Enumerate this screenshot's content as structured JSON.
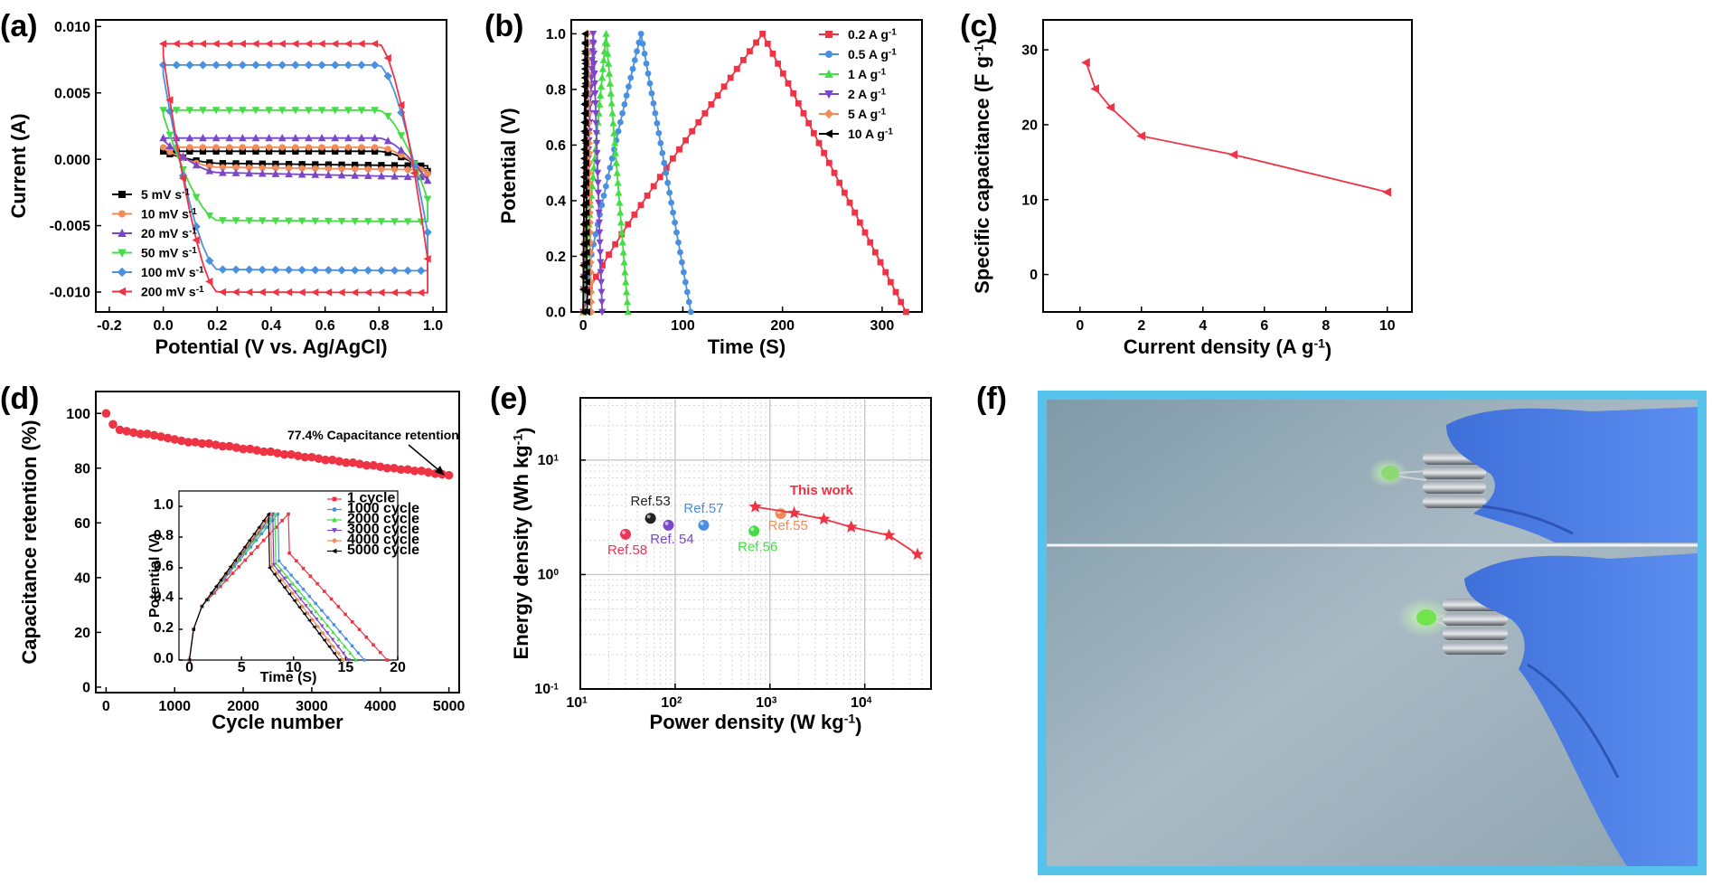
{
  "panels": {
    "a": {
      "label": "(a)"
    },
    "b": {
      "label": "(b)"
    },
    "c": {
      "label": "(c)"
    },
    "d": {
      "label": "(d)"
    },
    "e": {
      "label": "(e)"
    },
    "f": {
      "label": "(f)"
    }
  },
  "chart_data": [
    {
      "id": "a",
      "type": "line",
      "xlabel": "Potential (V vs. Ag/AgCl)",
      "ylabel": "Current (A)",
      "xlim": [
        -0.25,
        1.05
      ],
      "ylim": [
        -0.0115,
        0.0105
      ],
      "xticks": [
        -0.2,
        0.0,
        0.2,
        0.4,
        0.6,
        0.8,
        1.0
      ],
      "xtick_labels": [
        "-0.2",
        "0.0",
        "0.2",
        "0.4",
        "0.6",
        "0.8",
        "1.0"
      ],
      "yticks": [
        -0.01,
        -0.005,
        0.0,
        0.005,
        0.01
      ],
      "ytick_labels": [
        "-0.010",
        "-0.005",
        "0.000",
        "0.005",
        "0.010"
      ],
      "legend_position": "lower-left",
      "series": [
        {
          "name": "5 mV s",
          "sup": "-1",
          "color": "#000000",
          "marker": "square",
          "top": 0.0006,
          "bottom": -0.0003,
          "end_top": -0.0009,
          "end_bottom": -0.0011
        },
        {
          "name": "10 mV s",
          "sup": "-1",
          "color": "#f08c5a",
          "marker": "circle",
          "top": 0.0009,
          "bottom": -0.0006,
          "end_top": -0.0011,
          "end_bottom": -0.0014
        },
        {
          "name": "20 mV s",
          "sup": "-1",
          "color": "#7a47c8",
          "marker": "triangle-up",
          "top": 0.0016,
          "bottom": -0.001,
          "end_top": -0.0016,
          "end_bottom": -0.0024
        },
        {
          "name": "50 mV s",
          "sup": "-1",
          "color": "#44dd44",
          "marker": "triangle-down",
          "top": 0.0037,
          "bottom": -0.0046,
          "end_top": -0.003,
          "end_bottom": -0.005
        },
        {
          "name": "100 mV s",
          "sup": "-1",
          "color": "#4a90e0",
          "marker": "diamond",
          "top": 0.0071,
          "bottom": -0.0083,
          "end_top": -0.0055,
          "end_bottom": -0.0087
        },
        {
          "name": "200 mV s",
          "sup": "-1",
          "color": "#ee3344",
          "marker": "triangle-left",
          "top": 0.0087,
          "bottom": -0.01,
          "end_top": -0.0075,
          "end_bottom": -0.0102
        }
      ]
    },
    {
      "id": "b",
      "type": "line",
      "xlabel": "Time (S)",
      "ylabel": "Potential (V)",
      "xlim": [
        -12,
        340
      ],
      "ylim": [
        0,
        1.05
      ],
      "xticks": [
        0,
        100,
        200,
        300
      ],
      "xtick_labels": [
        "0",
        "100",
        "200",
        "300"
      ],
      "yticks": [
        0,
        0.2,
        0.4,
        0.6,
        0.8,
        1.0
      ],
      "ytick_labels": [
        "0.0",
        "0.2",
        "0.4",
        "0.6",
        "0.8",
        "1.0"
      ],
      "legend_position": "top-right",
      "series": [
        {
          "name": "0.2 A g",
          "sup": "-1",
          "color": "#ee3344",
          "marker": "square",
          "charge": 180,
          "discharge": 324
        },
        {
          "name": "0.5 A g",
          "sup": "-1",
          "color": "#4a90e0",
          "marker": "circle",
          "charge": 58,
          "discharge": 108
        },
        {
          "name": "1 A g",
          "sup": "-1",
          "color": "#44dd44",
          "marker": "triangle-up",
          "charge": 23,
          "discharge": 45
        },
        {
          "name": "2 A g",
          "sup": "-1",
          "color": "#7a47c8",
          "marker": "triangle-down",
          "charge": 10,
          "discharge": 19
        },
        {
          "name": "5 A g",
          "sup": "-1",
          "color": "#f08c5a",
          "marker": "diamond",
          "charge": 4,
          "discharge": 8
        },
        {
          "name": "10 A g",
          "sup": "-1",
          "color": "#000000",
          "marker": "triangle-left",
          "charge": 2,
          "discharge": 4
        }
      ]
    },
    {
      "id": "c",
      "type": "line",
      "xlabel": "Current density (A g",
      "xlabel_sup": "-1",
      "xlabel_end": ")",
      "ylabel": "Specific capacitance (F g",
      "ylabel_sup": "-1",
      "ylabel_end": ")",
      "xlim": [
        -1.2,
        10.8
      ],
      "ylim": [
        -5,
        34
      ],
      "xticks": [
        0,
        2,
        4,
        6,
        8,
        10
      ],
      "xtick_labels": [
        "0",
        "2",
        "4",
        "6",
        "8",
        "10"
      ],
      "yticks": [
        0,
        10,
        20,
        30
      ],
      "ytick_labels": [
        "0",
        "10",
        "20",
        "30"
      ],
      "series": [
        {
          "name": "",
          "color": "#ee3344",
          "marker": "triangle-left",
          "x": [
            0.2,
            0.5,
            1,
            2,
            5,
            10
          ],
          "y": [
            28.3,
            24.8,
            22.3,
            18.5,
            16.0,
            11.0
          ]
        }
      ]
    },
    {
      "id": "d",
      "type": "scatter",
      "xlabel": "Cycle number",
      "ylabel": "Capacitance retention (%)",
      "xlim": [
        -150,
        5150
      ],
      "ylim": [
        -2,
        108
      ],
      "xticks": [
        0,
        1000,
        2000,
        3000,
        4000,
        5000
      ],
      "xtick_labels": [
        "0",
        "1000",
        "2000",
        "3000",
        "4000",
        "5000"
      ],
      "yticks": [
        0,
        20,
        40,
        60,
        80,
        100
      ],
      "ytick_labels": [
        "0",
        "20",
        "40",
        "60",
        "80",
        "100"
      ],
      "annotation": "77.4% Capacitance retention",
      "series": [
        {
          "name": "",
          "color": "#ee3344",
          "marker": "circle",
          "x": [
            0,
            100,
            200,
            300,
            400,
            500,
            600,
            700,
            800,
            900,
            1000,
            1100,
            1200,
            1300,
            1400,
            1500,
            1600,
            1700,
            1800,
            1900,
            2000,
            2100,
            2200,
            2300,
            2400,
            2500,
            2600,
            2700,
            2800,
            2900,
            3000,
            3100,
            3200,
            3300,
            3400,
            3500,
            3600,
            3700,
            3800,
            3900,
            4000,
            4100,
            4200,
            4300,
            4400,
            4500,
            4600,
            4700,
            4800,
            4900,
            5000
          ],
          "y": [
            100,
            96,
            94,
            93.5,
            93,
            92.5,
            92.5,
            92,
            91.5,
            91,
            90.5,
            90,
            89.5,
            89.5,
            89,
            89,
            88.5,
            88,
            88,
            87.5,
            87,
            87,
            86.5,
            86,
            86,
            85.5,
            85,
            85,
            84.5,
            84,
            84,
            83.5,
            83,
            83,
            82.5,
            82,
            82,
            81.5,
            81,
            81,
            80.5,
            80,
            80,
            79.5,
            79.5,
            79,
            79,
            78.5,
            78,
            77.8,
            77.4
          ]
        }
      ]
    },
    {
      "id": "d-inset",
      "type": "line",
      "xlabel": "Time (S)",
      "ylabel": "Potential (V)",
      "xlim": [
        -1,
        20
      ],
      "ylim": [
        0,
        1.1
      ],
      "xticks": [
        0,
        5,
        10,
        15,
        20
      ],
      "xtick_labels": [
        "0",
        "5",
        "10",
        "15",
        "20"
      ],
      "yticks": [
        0,
        0.2,
        0.4,
        0.6,
        0.8,
        1.0
      ],
      "ytick_labels": [
        "0.0",
        "0.2",
        "0.4",
        "0.6",
        "0.8",
        "1.0"
      ],
      "legend_position": "top-right",
      "series": [
        {
          "name": "1 cycle",
          "color": "#ee3344",
          "marker": "square",
          "charge": 9.5,
          "end": 19
        },
        {
          "name": "1000 cycle",
          "color": "#4a90e0",
          "marker": "circle",
          "charge": 8.5,
          "end": 16.8
        },
        {
          "name": "2000 cycle",
          "color": "#44dd44",
          "marker": "triangle-up",
          "charge": 8.2,
          "end": 16.0
        },
        {
          "name": "3000 cycle",
          "color": "#7a47c8",
          "marker": "triangle-down",
          "charge": 8.0,
          "end": 15.3
        },
        {
          "name": "4000 cycle",
          "color": "#f08c5a",
          "marker": "diamond",
          "charge": 7.8,
          "end": 14.8
        },
        {
          "name": "5000 cycle",
          "color": "#000000",
          "marker": "triangle-left",
          "charge": 7.6,
          "end": 14.4
        }
      ]
    },
    {
      "id": "e",
      "type": "scatter",
      "xlabel": "Power density (W kg",
      "xlabel_sup": "-1",
      "xlabel_end": ")",
      "ylabel": "Energy density (Wh kg",
      "ylabel_sup": "-1",
      "ylabel_end": ")",
      "xscale": "log",
      "yscale": "log",
      "xlim": [
        10,
        50000
      ],
      "ylim": [
        0.1,
        35
      ],
      "xtick_mantissa": "10",
      "xtick_exponents": [
        "1",
        "2",
        "3",
        "4"
      ],
      "xtick_values": [
        10,
        100,
        1000,
        10000
      ],
      "ytick_mantissas": [
        "10",
        "10",
        "10"
      ],
      "ytick_exponents": [
        "-1",
        "0",
        "1"
      ],
      "ytick_values": [
        0.1,
        1,
        10
      ],
      "grid": true,
      "references": [
        {
          "label": "Ref.58",
          "x": 30,
          "y": 2.25,
          "color": "#ee3355"
        },
        {
          "label": "Ref.53",
          "x": 55,
          "y": 3.1,
          "color": "#222222"
        },
        {
          "label": "Ref. 54",
          "x": 85,
          "y": 2.7,
          "color": "#7a47c8"
        },
        {
          "label": "Ref.57",
          "x": 200,
          "y": 2.7,
          "color": "#4a90e0"
        },
        {
          "label": "Ref.56",
          "x": 680,
          "y": 2.4,
          "color": "#44dd44"
        },
        {
          "label": "Ref.55",
          "x": 1300,
          "y": 3.4,
          "color": "#f08c5a"
        }
      ],
      "series": [
        {
          "name": "This work",
          "color": "#ee3344",
          "marker": "star",
          "x": [
            700,
            1800,
            3700,
            7200,
            18000,
            36000
          ],
          "y": [
            3.9,
            3.45,
            3.05,
            2.6,
            2.2,
            1.5
          ]
        }
      ]
    }
  ]
}
